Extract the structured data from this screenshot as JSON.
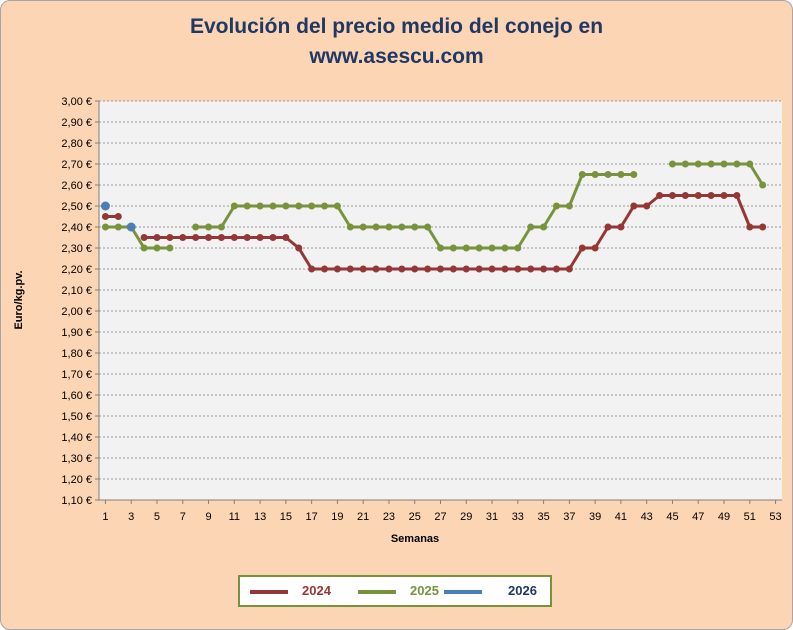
{
  "chart_data": {
    "type": "line",
    "title_lines": [
      "Evolución del precio medio del conejo en",
      "www.asescu.com"
    ],
    "xlabel": "Semanas",
    "ylabel": "Euro/kg.pv.",
    "ylim": [
      1.1,
      3.0
    ],
    "y_step": 0.1,
    "y_ticks": [
      "1,10 €",
      "1,20 €",
      "1,30 €",
      "1,40 €",
      "1,50 €",
      "1,60 €",
      "1,70 €",
      "1,80 €",
      "1,90 €",
      "2,00 €",
      "2,10 €",
      "2,20 €",
      "2,30 €",
      "2,40 €",
      "2,50 €",
      "2,60 €",
      "2,70 €",
      "2,80 €",
      "2,90 €",
      "3,00 €"
    ],
    "x_ticks": [
      1,
      3,
      5,
      7,
      9,
      11,
      13,
      15,
      17,
      19,
      21,
      23,
      25,
      27,
      29,
      31,
      33,
      35,
      37,
      39,
      41,
      43,
      45,
      47,
      49,
      51,
      53
    ],
    "xlim": [
      0.5,
      53.5
    ],
    "grid": true,
    "legend_position": "bottom",
    "series": [
      {
        "name": "2024",
        "color": "#953735",
        "x": [
          1,
          2,
          3,
          4,
          5,
          6,
          7,
          8,
          9,
          10,
          11,
          12,
          13,
          14,
          15,
          16,
          17,
          18,
          19,
          20,
          21,
          22,
          23,
          24,
          25,
          26,
          27,
          28,
          29,
          30,
          31,
          32,
          33,
          34,
          35,
          36,
          37,
          38,
          39,
          40,
          41,
          42,
          43,
          44,
          45,
          46,
          47,
          48,
          49,
          50,
          51,
          52
        ],
        "values": [
          2.45,
          2.45,
          null,
          2.35,
          2.35,
          2.35,
          2.35,
          2.35,
          2.35,
          2.35,
          2.35,
          2.35,
          2.35,
          2.35,
          2.35,
          2.3,
          2.2,
          2.2,
          2.2,
          2.2,
          2.2,
          2.2,
          2.2,
          2.2,
          2.2,
          2.2,
          2.2,
          2.2,
          2.2,
          2.2,
          2.2,
          2.2,
          2.2,
          2.2,
          2.2,
          2.2,
          2.2,
          2.3,
          2.3,
          2.4,
          2.4,
          2.5,
          2.5,
          2.55,
          2.55,
          2.55,
          2.55,
          2.55,
          2.55,
          2.55,
          2.4,
          2.4
        ]
      },
      {
        "name": "2025",
        "color": "#77933c",
        "x": [
          1,
          2,
          3,
          4,
          5,
          6,
          7,
          8,
          9,
          10,
          11,
          12,
          13,
          14,
          15,
          16,
          17,
          18,
          19,
          20,
          21,
          22,
          23,
          24,
          25,
          26,
          27,
          28,
          29,
          30,
          31,
          32,
          33,
          34,
          35,
          36,
          37,
          38,
          39,
          40,
          41,
          42,
          43,
          44,
          45,
          46,
          47,
          48,
          49,
          50,
          51,
          52
        ],
        "values": [
          2.4,
          2.4,
          2.4,
          2.3,
          2.3,
          2.3,
          null,
          2.4,
          2.4,
          2.4,
          2.5,
          2.5,
          2.5,
          2.5,
          2.5,
          2.5,
          2.5,
          2.5,
          2.5,
          2.4,
          2.4,
          2.4,
          2.4,
          2.4,
          2.4,
          2.4,
          2.3,
          2.3,
          2.3,
          2.3,
          2.3,
          2.3,
          2.3,
          2.4,
          2.4,
          2.5,
          2.5,
          2.65,
          2.65,
          2.65,
          2.65,
          2.65,
          null,
          null,
          2.7,
          2.7,
          2.7,
          2.7,
          2.7,
          2.7,
          2.7,
          2.6
        ]
      },
      {
        "name": "2026",
        "color": "#4a7eb4",
        "x": [
          1,
          2,
          3
        ],
        "values": [
          2.5,
          null,
          2.4
        ]
      }
    ]
  }
}
